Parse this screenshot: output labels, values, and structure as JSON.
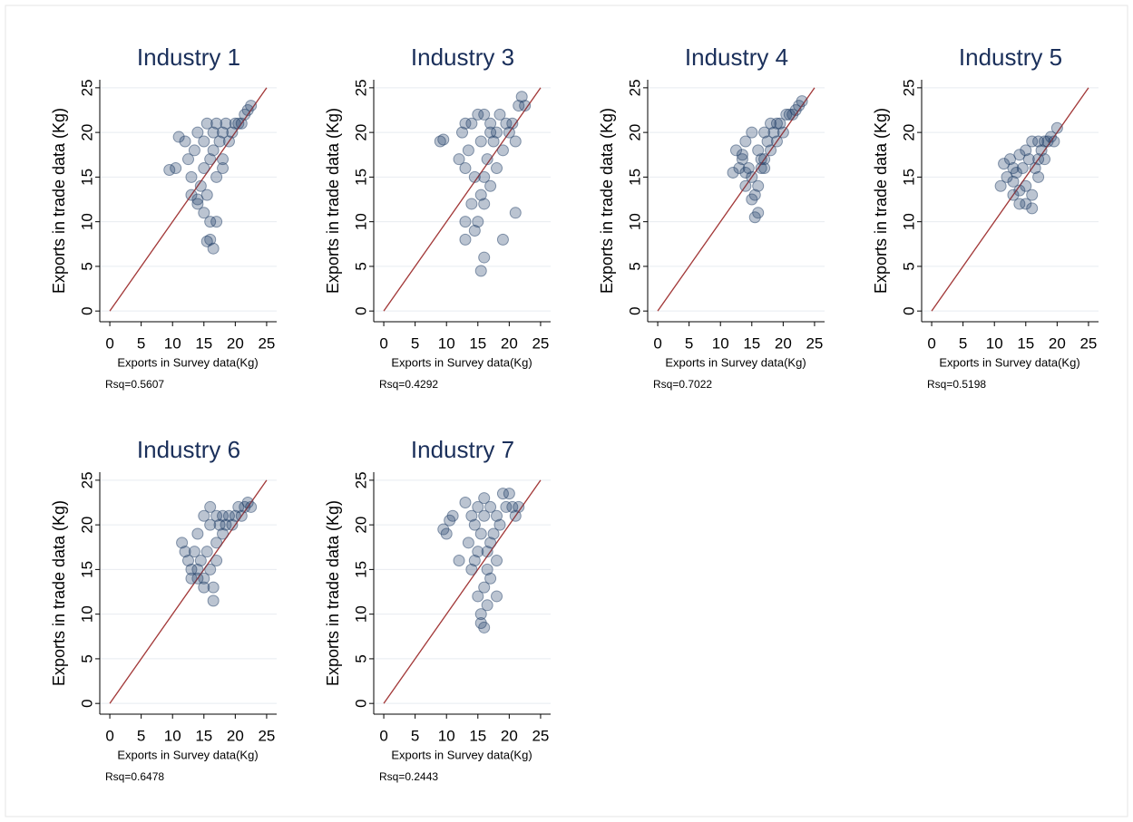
{
  "chart_data": [
    {
      "type": "scatter",
      "title": "Industry 1",
      "xlabel": "Exports in Survey data(Kg)",
      "ylabel": "Exports in trade data (Kg)",
      "note": "Rsq=0.5607",
      "xlim": [
        -1.6,
        26.6
      ],
      "ylim": [
        -1.2,
        25.9
      ],
      "xticks": [
        0,
        5,
        10,
        15,
        20,
        25
      ],
      "yticks": [
        0,
        5,
        10,
        15,
        20,
        25
      ],
      "grid": true,
      "color": "#1f3d66",
      "x": [
        9.5,
        10.5,
        11,
        12,
        12.5,
        13,
        13.5,
        14,
        14,
        14.5,
        15,
        15,
        15.5,
        15.5,
        16,
        16,
        16.5,
        16.5,
        17,
        17,
        17.5,
        18,
        18,
        18.5,
        19,
        19.5,
        20,
        20.5,
        21,
        21.5,
        22,
        22.5,
        15.5,
        16.5,
        16,
        14,
        17,
        13,
        15,
        18
      ],
      "values": [
        15.8,
        16,
        19.5,
        19,
        17,
        15,
        18,
        12,
        20,
        14,
        16,
        19,
        13,
        21,
        10,
        17,
        18,
        20,
        15,
        21,
        19,
        17,
        20,
        21,
        19,
        20,
        21,
        21,
        21,
        22,
        22.5,
        23,
        7.8,
        7,
        8,
        12.5,
        10,
        13,
        11,
        16
      ],
      "fit_line": {
        "x": [
          0,
          25
        ],
        "values": [
          0,
          25
        ],
        "color": "#a33a3a"
      }
    },
    {
      "type": "scatter",
      "title": "Industry 3",
      "xlabel": "Exports in Survey data(Kg)",
      "ylabel": "Exports in trade data (Kg)",
      "note": "Rsq=0.4292",
      "xlim": [
        -1.6,
        26.6
      ],
      "ylim": [
        -1.2,
        25.9
      ],
      "xticks": [
        0,
        5,
        10,
        15,
        20,
        25
      ],
      "yticks": [
        0,
        5,
        10,
        15,
        20,
        25
      ],
      "grid": true,
      "color": "#1f3d66",
      "x": [
        9,
        9.5,
        12,
        12.5,
        13,
        13,
        13.5,
        14,
        14,
        14.5,
        15,
        15,
        15.5,
        15.5,
        16,
        16,
        16.5,
        17,
        17,
        17.5,
        18,
        18,
        18.5,
        19,
        19.5,
        20,
        20.5,
        21,
        21.5,
        22,
        22.5,
        13,
        15.5,
        16,
        19,
        21,
        13,
        14.5,
        16,
        17
      ],
      "values": [
        19,
        19.2,
        17,
        20,
        8,
        16,
        18,
        12,
        21,
        15,
        22,
        10,
        4.5,
        19,
        6,
        22,
        17,
        21,
        14,
        19,
        20,
        16,
        22,
        8,
        21,
        20,
        21,
        11,
        23,
        24,
        23,
        10,
        13,
        15,
        18,
        19,
        21,
        9,
        12,
        20
      ],
      "fit_line": {
        "x": [
          0,
          25
        ],
        "values": [
          0,
          25
        ],
        "color": "#a33a3a"
      }
    },
    {
      "type": "scatter",
      "title": "Industry 4",
      "xlabel": "Exports in Survey data(Kg)",
      "ylabel": "Exports in trade data (Kg)",
      "note": "Rsq=0.7022",
      "xlim": [
        -1.6,
        26.6
      ],
      "ylim": [
        -1.2,
        25.9
      ],
      "xticks": [
        0,
        5,
        10,
        15,
        20,
        25
      ],
      "yticks": [
        0,
        5,
        10,
        15,
        20,
        25
      ],
      "grid": true,
      "color": "#1f3d66",
      "x": [
        12,
        12.5,
        13,
        13.5,
        14,
        14,
        14.5,
        15,
        15,
        15.5,
        16,
        16,
        16.5,
        17,
        17,
        17.5,
        18,
        18,
        18.5,
        19,
        19.5,
        20,
        20.5,
        21,
        21.5,
        22,
        22.5,
        23,
        15,
        16,
        14,
        17,
        13.5,
        16.5,
        15.5,
        19
      ],
      "values": [
        15.5,
        18,
        16,
        17,
        14,
        19,
        16,
        15,
        20,
        13,
        11,
        18,
        17,
        16,
        20,
        19,
        18,
        21,
        20,
        19,
        21,
        20,
        22,
        22,
        22,
        22.5,
        23,
        23.5,
        12.5,
        14,
        15.5,
        17,
        17.5,
        16,
        10.5,
        21
      ],
      "fit_line": {
        "x": [
          0,
          25
        ],
        "values": [
          0,
          25
        ],
        "color": "#a33a3a"
      }
    },
    {
      "type": "scatter",
      "title": "Industry 5",
      "xlabel": "Exports in Survey data(Kg)",
      "ylabel": "Exports in trade data (Kg)",
      "note": "Rsq=0.5198",
      "xlim": [
        -1.6,
        26.6
      ],
      "ylim": [
        -1.2,
        25.9
      ],
      "xticks": [
        0,
        5,
        10,
        15,
        20,
        25
      ],
      "yticks": [
        0,
        5,
        10,
        15,
        20,
        25
      ],
      "grid": true,
      "color": "#1f3d66",
      "x": [
        11,
        11.5,
        12,
        12.5,
        13,
        13,
        13.5,
        14,
        14,
        14.5,
        15,
        15,
        15.5,
        16,
        16,
        16.5,
        17,
        17,
        17.5,
        18,
        18,
        18.5,
        19,
        19.5,
        20,
        15,
        16,
        14,
        13,
        17
      ],
      "values": [
        14,
        16.5,
        15,
        17,
        13,
        16,
        15.5,
        12,
        17.5,
        16,
        14,
        18,
        17,
        11.5,
        19,
        16,
        17,
        19,
        18,
        17,
        19,
        19,
        19.5,
        19,
        20.5,
        12,
        13,
        13.5,
        14.5,
        15
      ],
      "fit_line": {
        "x": [
          0,
          25
        ],
        "values": [
          0,
          25
        ],
        "color": "#a33a3a"
      }
    },
    {
      "type": "scatter",
      "title": "Industry 6",
      "xlabel": "Exports in Survey data(Kg)",
      "ylabel": "Exports in trade data (Kg)",
      "note": "Rsq=0.6478",
      "xlim": [
        -1.6,
        26.6
      ],
      "ylim": [
        -1.2,
        25.9
      ],
      "xticks": [
        0,
        5,
        10,
        15,
        20,
        25
      ],
      "yticks": [
        0,
        5,
        10,
        15,
        20,
        25
      ],
      "grid": true,
      "color": "#1f3d66",
      "x": [
        11.5,
        12,
        12.5,
        13,
        13.5,
        14,
        14,
        14.5,
        15,
        15,
        15.5,
        16,
        16,
        16.5,
        17,
        17,
        17.5,
        18,
        18,
        18.5,
        19,
        19.5,
        20,
        20.5,
        21,
        21.5,
        22,
        22.5,
        16.5,
        15,
        14,
        17,
        13,
        16
      ],
      "values": [
        18,
        17,
        16,
        15,
        17,
        14,
        19,
        16,
        13,
        21,
        17,
        15,
        22,
        11.5,
        18,
        21,
        20,
        19,
        21,
        20,
        21,
        20,
        21,
        22,
        21,
        22,
        22.5,
        22,
        13,
        14,
        15,
        16,
        14,
        20
      ],
      "fit_line": {
        "x": [
          0,
          25
        ],
        "values": [
          0,
          25
        ],
        "color": "#a33a3a"
      }
    },
    {
      "type": "scatter",
      "title": "Industry 7",
      "xlabel": "Exports in Survey data(Kg)",
      "ylabel": "Exports in trade data (Kg)",
      "note": "Rsq=0.2443",
      "xlim": [
        -1.6,
        26.6
      ],
      "ylim": [
        -1.2,
        25.9
      ],
      "xticks": [
        0,
        5,
        10,
        15,
        20,
        25
      ],
      "yticks": [
        0,
        5,
        10,
        15,
        20,
        25
      ],
      "grid": true,
      "color": "#1f3d66",
      "x": [
        9.5,
        10,
        10.5,
        11,
        12,
        13,
        13.5,
        14,
        14,
        14.5,
        15,
        15,
        15.5,
        15.5,
        16,
        16,
        16.5,
        16.5,
        17,
        17,
        17.5,
        18,
        18,
        18.5,
        19,
        19.5,
        20,
        20.5,
        21,
        21.5,
        15.5,
        16,
        16.5,
        17,
        15,
        16,
        18,
        14.5
      ],
      "values": [
        19.5,
        19,
        20.5,
        21,
        16,
        22.5,
        18,
        21,
        15,
        20,
        12,
        22,
        9,
        19,
        8.5,
        21,
        11,
        17,
        14,
        22,
        19,
        21,
        16,
        20,
        23.5,
        22,
        23.5,
        22,
        21,
        22,
        10,
        13,
        15,
        18,
        17,
        23,
        12,
        16
      ],
      "fit_line": {
        "x": [
          0,
          25
        ],
        "values": [
          0,
          25
        ],
        "color": "#a33a3a"
      }
    }
  ]
}
